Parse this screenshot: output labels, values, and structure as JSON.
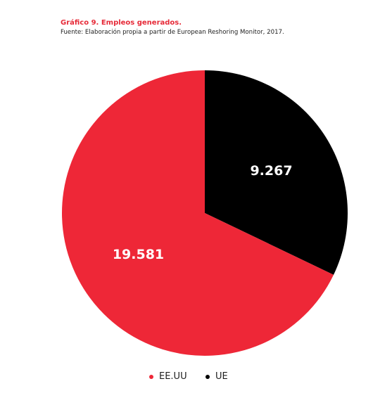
{
  "chart_data": {
    "type": "pie",
    "title": "Gráfico 9. Empleos generados.",
    "subtitle": "Fuente: Elaboración propia a partir de European Reshoring Monitor, 2017.",
    "series": [
      {
        "name": "EE.UU",
        "value": 19581,
        "label": "19.581",
        "color": "#ee2737"
      },
      {
        "name": "UE",
        "value": 9267,
        "label": "9.267",
        "color": "#000000"
      }
    ],
    "legend_position": "bottom"
  }
}
